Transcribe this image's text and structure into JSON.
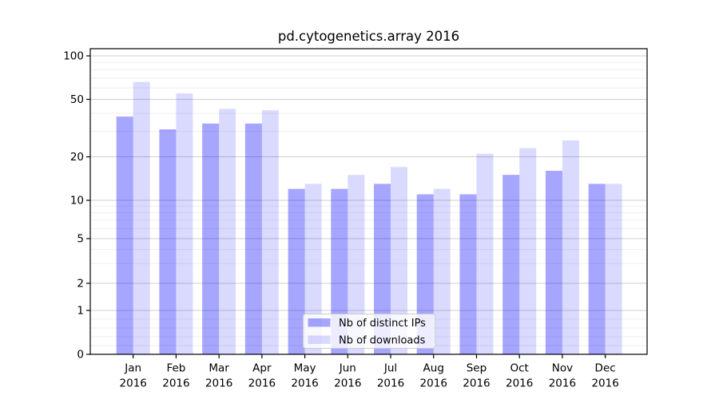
{
  "title": "pd.cytogenetics.array 2016",
  "chart_data": {
    "type": "bar",
    "title": "pd.cytogenetics.array 2016",
    "xlabel": "",
    "ylabel": "",
    "categories": [
      "Jan",
      "Feb",
      "Mar",
      "Apr",
      "May",
      "Jun",
      "Jul",
      "Aug",
      "Sep",
      "Oct",
      "Nov",
      "Dec"
    ],
    "category_year": "2016",
    "series": [
      {
        "name": "Nb of distinct IPs",
        "values": [
          38,
          31,
          34,
          34,
          12,
          12,
          13,
          11,
          11,
          15,
          16,
          13
        ],
        "color": "rgba(0,0,255,0.35)",
        "solid_on_white": "#a6a6ff"
      },
      {
        "name": "Nb of downloads",
        "values": [
          66,
          55,
          43,
          42,
          13,
          15,
          17,
          12,
          21,
          23,
          26,
          13
        ],
        "color": "rgba(0,0,255,0.147)",
        "solid_on_white": "#d9d9ff"
      }
    ],
    "yscale": {
      "type": "symlog",
      "ylim": [
        0,
        112
      ],
      "major_ticks": [
        0,
        1,
        2,
        5,
        10,
        20,
        50,
        100
      ],
      "major_tick_labels": [
        "0",
        "1",
        "2",
        "5",
        "10",
        "20",
        "50",
        "100"
      ],
      "minor_ticks": [
        0.2,
        0.4,
        0.6,
        0.8,
        3,
        4,
        6,
        7,
        8,
        9,
        30,
        40,
        60,
        70,
        80,
        90
      ],
      "anchors": [
        [
          0,
          0
        ],
        [
          1,
          0.1436
        ],
        [
          2,
          0.2324
        ],
        [
          5,
          0.3786
        ],
        [
          10,
          0.5039
        ],
        [
          20,
          0.6462
        ],
        [
          50,
          0.8342
        ],
        [
          100,
          0.9765
        ]
      ]
    },
    "grid": "both",
    "legend": {
      "position": "lower-center",
      "entries": [
        "Nb of distinct IPs",
        "Nb of downloads"
      ]
    }
  },
  "colors": {
    "background": "#ffffff",
    "grid_major": "#cfcfcf",
    "grid_minor": "#efefef",
    "spine": "#000000",
    "tick": "#000000",
    "text": "#000000",
    "legend_bg": "rgba(255,255,255,0.8)",
    "legend_border": "#cccccc"
  }
}
